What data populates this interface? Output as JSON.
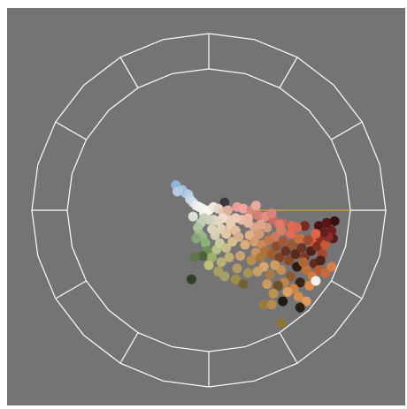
{
  "viewer": {
    "name": "color-distribution-scope",
    "background_color": "#747474",
    "graticule_color": "#ffffff",
    "indicator_line_color": "#d8a33a",
    "wheel_segments": 12,
    "ring_ratio": 0.8
  },
  "chart_data": {
    "type": "scatter",
    "title": "",
    "xlabel": "",
    "ylabel": "",
    "grid": true,
    "legend": "none",
    "series": [
      {
        "points": [
          {
            "x": -0.21,
            "y": 0.16,
            "c": "#8fb3de"
          },
          {
            "x": -0.17,
            "y": 0.13,
            "c": "#a5c2e2"
          },
          {
            "x": -0.15,
            "y": 0.11,
            "c": "#9ec0e4"
          },
          {
            "x": -0.13,
            "y": 0.1,
            "c": "#b4cde6"
          },
          {
            "x": -0.12,
            "y": 0.07,
            "c": "#c6d7ea"
          },
          {
            "x": -0.1,
            "y": 0.05,
            "c": "#d1dfe9"
          },
          {
            "x": -0.08,
            "y": 0.03,
            "c": "#e4ecf0"
          },
          {
            "x": -0.06,
            "y": 0.02,
            "c": "#eef3f4"
          },
          {
            "x": -0.04,
            "y": 0.01,
            "c": "#f3f3ee"
          },
          {
            "x": -0.03,
            "y": -0.02,
            "c": "#f5f4ea"
          },
          {
            "x": 0.1,
            "y": 0.05,
            "c": "#41363c"
          },
          {
            "x": 0.0,
            "y": 0.0,
            "c": "#fbf6ef"
          },
          {
            "x": 0.03,
            "y": 0.02,
            "c": "#f1e9de"
          },
          {
            "x": 0.06,
            "y": 0.01,
            "c": "#e5d7c6"
          },
          {
            "x": 0.09,
            "y": -0.01,
            "c": "#e4c6b1"
          },
          {
            "x": 0.12,
            "y": 0.0,
            "c": "#d9b19d"
          },
          {
            "x": 0.18,
            "y": 0.02,
            "c": "#e89f9a"
          },
          {
            "x": 0.22,
            "y": 0.01,
            "c": "#f2a59c"
          },
          {
            "x": 0.27,
            "y": 0.0,
            "c": "#d88a7a"
          },
          {
            "x": 0.31,
            "y": -0.03,
            "c": "#d67f73"
          },
          {
            "x": 0.36,
            "y": -0.04,
            "c": "#e08f86"
          },
          {
            "x": 0.41,
            "y": -0.06,
            "c": "#c96b62"
          },
          {
            "x": 0.47,
            "y": -0.08,
            "c": "#ba6a5c"
          },
          {
            "x": 0.53,
            "y": -0.1,
            "c": "#e26b4f"
          },
          {
            "x": 0.61,
            "y": -0.1,
            "c": "#7a2a23"
          },
          {
            "x": 0.7,
            "y": -0.1,
            "c": "#4a1516"
          },
          {
            "x": 0.78,
            "y": -0.13,
            "c": "#731d1e"
          },
          {
            "x": 0.79,
            "y": -0.18,
            "c": "#5e1a1a"
          },
          {
            "x": 0.71,
            "y": -0.18,
            "c": "#8c2d26"
          },
          {
            "x": 0.66,
            "y": -0.21,
            "c": "#d9573b"
          },
          {
            "x": 0.58,
            "y": -0.18,
            "c": "#e6694b"
          },
          {
            "x": 0.52,
            "y": -0.15,
            "c": "#e06b56"
          },
          {
            "x": 0.46,
            "y": -0.13,
            "c": "#d88066"
          },
          {
            "x": 0.42,
            "y": -0.17,
            "c": "#c97a5f"
          },
          {
            "x": 0.37,
            "y": -0.11,
            "c": "#d89a7e"
          },
          {
            "x": 0.33,
            "y": -0.09,
            "c": "#e3a48e"
          },
          {
            "x": 0.29,
            "y": -0.11,
            "c": "#dca58e"
          },
          {
            "x": 0.25,
            "y": -0.08,
            "c": "#e5b8a2"
          },
          {
            "x": 0.21,
            "y": -0.06,
            "c": "#e8c0ab"
          },
          {
            "x": 0.17,
            "y": -0.05,
            "c": "#ecccb6"
          },
          {
            "x": 0.13,
            "y": -0.06,
            "c": "#e6cdb5"
          },
          {
            "x": 0.09,
            "y": -0.05,
            "c": "#f0dcc8"
          },
          {
            "x": 0.06,
            "y": -0.07,
            "c": "#e7d8c4"
          },
          {
            "x": 0.03,
            "y": -0.06,
            "c": "#dcd8c5"
          },
          {
            "x": 0.0,
            "y": -0.06,
            "c": "#cdd0bd"
          },
          {
            "x": -0.03,
            "y": -0.05,
            "c": "#c8cfbb"
          },
          {
            "x": -0.05,
            "y": -0.08,
            "c": "#bccfb4"
          },
          {
            "x": -0.07,
            "y": -0.11,
            "c": "#abc59e"
          },
          {
            "x": -0.06,
            "y": -0.15,
            "c": "#9fbd8d"
          },
          {
            "x": -0.04,
            "y": -0.17,
            "c": "#94b684"
          },
          {
            "x": -0.02,
            "y": -0.21,
            "c": "#8cb07a"
          },
          {
            "x": -0.01,
            "y": -0.26,
            "c": "#6f8d5a"
          },
          {
            "x": -0.04,
            "y": -0.29,
            "c": "#4d633c"
          },
          {
            "x": -0.09,
            "y": -0.3,
            "c": "#607648"
          },
          {
            "x": -0.11,
            "y": -0.44,
            "c": "#314023"
          },
          {
            "x": 0.02,
            "y": -0.3,
            "c": "#9ab06b"
          },
          {
            "x": 0.05,
            "y": -0.25,
            "c": "#b7c28a"
          },
          {
            "x": 0.07,
            "y": -0.21,
            "c": "#c8c99c"
          },
          {
            "x": 0.04,
            "y": -0.16,
            "c": "#d2d0b0"
          },
          {
            "x": 0.02,
            "y": -0.12,
            "c": "#d8d5bb"
          },
          {
            "x": 0.08,
            "y": -0.12,
            "c": "#e1d1b4"
          },
          {
            "x": 0.11,
            "y": -0.15,
            "c": "#e2c9a8"
          },
          {
            "x": 0.14,
            "y": -0.1,
            "c": "#e9cfb0"
          },
          {
            "x": 0.17,
            "y": -0.13,
            "c": "#e4bf9b"
          },
          {
            "x": 0.19,
            "y": -0.17,
            "c": "#d8b089"
          },
          {
            "x": 0.15,
            "y": -0.2,
            "c": "#d3bd91"
          },
          {
            "x": 0.11,
            "y": -0.24,
            "c": "#c8bd87"
          },
          {
            "x": 0.13,
            "y": -0.3,
            "c": "#bfae74"
          },
          {
            "x": 0.08,
            "y": -0.33,
            "c": "#b8b078"
          },
          {
            "x": 0.06,
            "y": -0.39,
            "c": "#a8a063"
          },
          {
            "x": 0.17,
            "y": -0.44,
            "c": "#9c8d4d"
          },
          {
            "x": 0.18,
            "y": -0.37,
            "c": "#b39a62"
          },
          {
            "x": 0.2,
            "y": -0.29,
            "c": "#c9a573"
          },
          {
            "x": 0.23,
            "y": -0.22,
            "c": "#dcab7e"
          },
          {
            "x": 0.26,
            "y": -0.16,
            "c": "#e2b287"
          },
          {
            "x": 0.29,
            "y": -0.2,
            "c": "#d69c6c"
          },
          {
            "x": 0.32,
            "y": -0.15,
            "c": "#d59a74"
          },
          {
            "x": 0.34,
            "y": -0.22,
            "c": "#c88a5a"
          },
          {
            "x": 0.38,
            "y": -0.19,
            "c": "#c27a4d"
          },
          {
            "x": 0.3,
            "y": -0.27,
            "c": "#c99560"
          },
          {
            "x": 0.27,
            "y": -0.32,
            "c": "#b98d52"
          },
          {
            "x": 0.33,
            "y": -0.3,
            "c": "#a8793f"
          },
          {
            "x": 0.36,
            "y": -0.26,
            "c": "#b36f3a"
          },
          {
            "x": 0.4,
            "y": -0.28,
            "c": "#9c6033"
          },
          {
            "x": 0.43,
            "y": -0.23,
            "c": "#8e4e2c"
          },
          {
            "x": 0.45,
            "y": -0.3,
            "c": "#7e4325"
          },
          {
            "x": 0.47,
            "y": -0.2,
            "c": "#a35837"
          },
          {
            "x": 0.49,
            "y": -0.26,
            "c": "#6d3322"
          },
          {
            "x": 0.51,
            "y": -0.32,
            "c": "#8a4a2a"
          },
          {
            "x": 0.53,
            "y": -0.22,
            "c": "#9b5a37"
          },
          {
            "x": 0.55,
            "y": -0.28,
            "c": "#5a2a1d"
          },
          {
            "x": 0.57,
            "y": -0.18,
            "c": "#c27040"
          },
          {
            "x": 0.59,
            "y": -0.24,
            "c": "#6e3424"
          },
          {
            "x": 0.61,
            "y": -0.3,
            "c": "#7a3a27"
          },
          {
            "x": 0.63,
            "y": -0.19,
            "c": "#a14a32"
          },
          {
            "x": 0.65,
            "y": -0.26,
            "c": "#4b2218"
          },
          {
            "x": 0.67,
            "y": -0.34,
            "c": "#602a1f"
          },
          {
            "x": 0.69,
            "y": -0.23,
            "c": "#7f3223"
          },
          {
            "x": 0.72,
            "y": -0.28,
            "c": "#a4462c"
          },
          {
            "x": 0.74,
            "y": -0.22,
            "c": "#c75a36"
          },
          {
            "x": 0.76,
            "y": -0.17,
            "c": "#8a2f24"
          },
          {
            "x": 0.73,
            "y": -0.14,
            "c": "#642020"
          },
          {
            "x": 0.52,
            "y": -0.42,
            "c": "#8a5c34"
          },
          {
            "x": 0.56,
            "y": -0.36,
            "c": "#2b1a15"
          },
          {
            "x": 0.58,
            "y": -0.46,
            "c": "#3a2418"
          },
          {
            "x": 0.62,
            "y": -0.38,
            "c": "#c2703a"
          },
          {
            "x": 0.6,
            "y": -0.33,
            "c": "#b36434"
          },
          {
            "x": 0.66,
            "y": -0.42,
            "c": "#d07a41"
          },
          {
            "x": 0.7,
            "y": -0.38,
            "c": "#b65c33"
          },
          {
            "x": 0.64,
            "y": -0.48,
            "c": "#e08a4a"
          },
          {
            "x": 0.54,
            "y": -0.5,
            "c": "#cf8545"
          },
          {
            "x": 0.48,
            "y": -0.46,
            "c": "#b9864f"
          },
          {
            "x": 0.46,
            "y": -0.38,
            "c": "#c58e57"
          },
          {
            "x": 0.42,
            "y": -0.35,
            "c": "#d19a63"
          },
          {
            "x": 0.39,
            "y": -0.41,
            "c": "#a67b45"
          },
          {
            "x": 0.44,
            "y": -0.48,
            "c": "#6b5030"
          },
          {
            "x": 0.41,
            "y": -0.53,
            "c": "#c0924f"
          },
          {
            "x": 0.47,
            "y": -0.58,
            "c": "#1f1a14"
          },
          {
            "x": 0.37,
            "y": -0.47,
            "c": "#cb9a5c"
          },
          {
            "x": 0.35,
            "y": -0.36,
            "c": "#d9a56f"
          },
          {
            "x": 0.31,
            "y": -0.39,
            "c": "#caa064"
          },
          {
            "x": 0.35,
            "y": -0.6,
            "c": "#9c7a3e"
          },
          {
            "x": 0.46,
            "y": -0.72,
            "c": "#8f7437"
          },
          {
            "x": 0.57,
            "y": -0.55,
            "c": "#d38f4f"
          },
          {
            "x": 0.62,
            "y": -0.58,
            "c": "#e49a58"
          },
          {
            "x": 0.22,
            "y": -0.47,
            "c": "#6f6436"
          },
          {
            "x": 0.25,
            "y": -0.4,
            "c": "#a89256"
          },
          {
            "x": 0.4,
            "y": -0.6,
            "c": "#b88a49"
          },
          {
            "x": 0.5,
            "y": -0.52,
            "c": "#e0a060"
          },
          {
            "x": -0.2,
            "y": 0.12,
            "c": "#b7cbe0"
          },
          {
            "x": -0.1,
            "y": -0.04,
            "c": "#d7e2d5"
          },
          {
            "x": -0.08,
            "y": -0.18,
            "c": "#8aa37a"
          },
          {
            "x": 0.0,
            "y": -0.35,
            "c": "#c0bf80"
          },
          {
            "x": 0.1,
            "y": -0.42,
            "c": "#a2a06c"
          },
          {
            "x": 0.25,
            "y": -0.05,
            "c": "#f0b4a4"
          },
          {
            "x": 0.3,
            "y": 0.03,
            "c": "#e9aa9f"
          },
          {
            "x": 0.4,
            "y": -0.02,
            "c": "#d8877a"
          },
          {
            "x": 0.45,
            "y": -0.09,
            "c": "#e07c68"
          },
          {
            "x": 0.56,
            "y": -0.11,
            "c": "#d66a52"
          },
          {
            "x": 0.68,
            "y": -0.15,
            "c": "#e0634a"
          },
          {
            "x": 0.75,
            "y": -0.08,
            "c": "#5a1616"
          },
          {
            "x": 0.8,
            "y": -0.07,
            "c": "#3a0f10"
          },
          {
            "x": 0.71,
            "y": -0.32,
            "c": "#4f2118"
          },
          {
            "x": 0.68,
            "y": -0.45,
            "c": "#f4f0ea"
          },
          {
            "x": 0.74,
            "y": -0.4,
            "c": "#c86a3c"
          },
          {
            "x": 0.78,
            "y": -0.36,
            "c": "#d97e48"
          },
          {
            "x": 0.58,
            "y": -0.62,
            "c": "#2a1f18"
          }
        ]
      }
    ]
  }
}
